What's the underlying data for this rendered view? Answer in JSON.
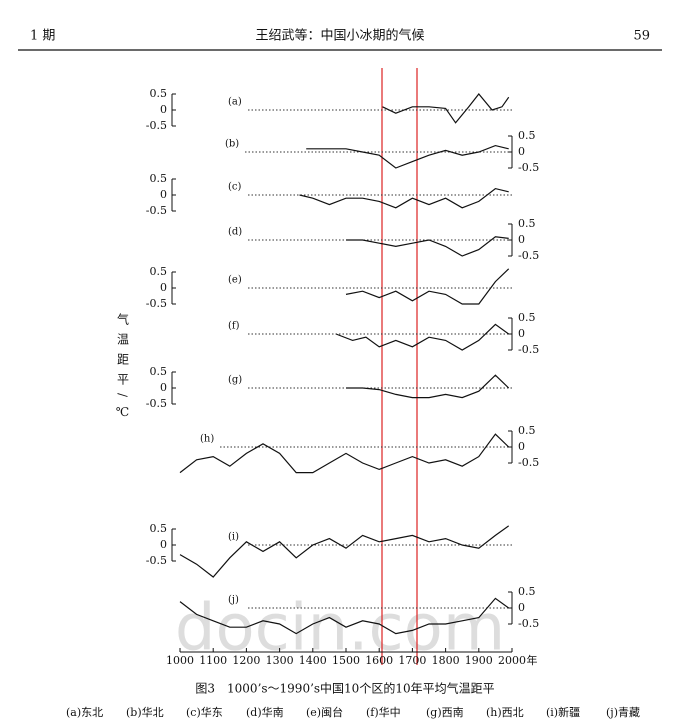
{
  "header": {
    "left": "1 期",
    "center": "王绍武等：中国小冰期的气候",
    "right": "59"
  },
  "figure": {
    "ylabel": "气温距平/℃",
    "caption": "图3　1000’s～1990’s中国10个区的10年平均气温距平",
    "legend": [
      "(a)东北",
      "(b)华北",
      "(c)华东",
      "(d)华南",
      "(e)闽台",
      "(f)华中",
      "(g)西南",
      "(h)西北",
      "(i)新疆",
      "(j)青藏"
    ],
    "watermark": "docin.com"
  },
  "chart_data": [
    {
      "type": "line",
      "label": "(a)",
      "axis": "left",
      "xlim": [
        1000,
        2000
      ],
      "ylim": [
        -0.5,
        0.5
      ],
      "yticks": [
        0.5,
        0,
        -0.5
      ],
      "x": [
        1610,
        1650,
        1700,
        1750,
        1800,
        1830,
        1870,
        1900,
        1940,
        1970,
        1990
      ],
      "values": [
        0.1,
        -0.1,
        0.1,
        0.1,
        0.05,
        -0.4,
        0.1,
        0.5,
        0,
        0.1,
        0.4
      ]
    },
    {
      "type": "line",
      "label": "(b)",
      "axis": "right",
      "xlim": [
        1000,
        2000
      ],
      "ylim": [
        -0.5,
        0.5
      ],
      "yticks": [
        0.5,
        0,
        -0.5
      ],
      "x": [
        1380,
        1450,
        1500,
        1550,
        1600,
        1650,
        1700,
        1750,
        1800,
        1850,
        1900,
        1950,
        1990
      ],
      "values": [
        0.1,
        0.1,
        0.1,
        0,
        -0.1,
        -0.5,
        -0.3,
        -0.1,
        0.05,
        -0.1,
        0,
        0.2,
        0.1
      ]
    },
    {
      "type": "line",
      "label": "(c)",
      "axis": "left",
      "xlim": [
        1000,
        2000
      ],
      "ylim": [
        -0.5,
        0.5
      ],
      "yticks": [
        0.5,
        0,
        -0.5
      ],
      "x": [
        1360,
        1400,
        1450,
        1500,
        1550,
        1600,
        1650,
        1700,
        1750,
        1800,
        1850,
        1900,
        1950,
        1990
      ],
      "values": [
        0,
        -0.1,
        -0.3,
        -0.1,
        -0.1,
        -0.2,
        -0.4,
        -0.1,
        -0.3,
        -0.1,
        -0.4,
        -0.2,
        0.2,
        0.1
      ]
    },
    {
      "type": "line",
      "label": "(d)",
      "axis": "right",
      "xlim": [
        1000,
        2000
      ],
      "ylim": [
        -0.5,
        0.5
      ],
      "yticks": [
        0.5,
        0,
        -0.5
      ],
      "x": [
        1500,
        1550,
        1600,
        1650,
        1700,
        1750,
        1800,
        1850,
        1900,
        1950,
        1990
      ],
      "values": [
        0,
        0,
        -0.1,
        -0.2,
        -0.1,
        0,
        -0.2,
        -0.5,
        -0.3,
        0.1,
        0.05
      ]
    },
    {
      "type": "line",
      "label": "(e)",
      "axis": "left",
      "xlim": [
        1000,
        2000
      ],
      "ylim": [
        -0.5,
        0.5
      ],
      "yticks": [
        0.5,
        0,
        -0.5
      ],
      "x": [
        1500,
        1550,
        1600,
        1650,
        1700,
        1750,
        1800,
        1850,
        1900,
        1950,
        1990
      ],
      "values": [
        -0.2,
        -0.1,
        -0.3,
        -0.1,
        -0.4,
        -0.1,
        -0.2,
        -0.5,
        -0.5,
        0.2,
        0.6
      ]
    },
    {
      "type": "line",
      "label": "(f)",
      "axis": "right",
      "xlim": [
        1000,
        2000
      ],
      "ylim": [
        -0.5,
        0.5
      ],
      "yticks": [
        0.5,
        0,
        -0.5
      ],
      "x": [
        1470,
        1520,
        1560,
        1600,
        1650,
        1700,
        1750,
        1800,
        1850,
        1900,
        1950,
        1990
      ],
      "values": [
        0,
        -0.2,
        -0.1,
        -0.4,
        -0.2,
        -0.4,
        -0.1,
        -0.2,
        -0.5,
        -0.2,
        0.3,
        0
      ]
    },
    {
      "type": "line",
      "label": "(g)",
      "axis": "left",
      "xlim": [
        1000,
        2000
      ],
      "ylim": [
        -0.5,
        0.5
      ],
      "yticks": [
        0.5,
        0,
        -0.5
      ],
      "x": [
        1500,
        1550,
        1600,
        1650,
        1700,
        1750,
        1800,
        1850,
        1900,
        1950,
        1990
      ],
      "values": [
        0,
        0,
        -0.05,
        -0.2,
        -0.3,
        -0.3,
        -0.2,
        -0.3,
        -0.1,
        0.4,
        0
      ]
    },
    {
      "type": "line",
      "label": "(h)",
      "axis": "right",
      "xlim": [
        1000,
        2000
      ],
      "ylim": [
        -0.5,
        0.5
      ],
      "yticks": [
        0.5,
        0,
        -0.5
      ],
      "x": [
        1000,
        1050,
        1100,
        1150,
        1200,
        1250,
        1300,
        1350,
        1400,
        1450,
        1500,
        1550,
        1600,
        1650,
        1700,
        1750,
        1800,
        1850,
        1900,
        1950,
        1990
      ],
      "values": [
        -0.8,
        -0.4,
        -0.3,
        -0.6,
        -0.2,
        0.1,
        -0.2,
        -0.8,
        -0.8,
        -0.5,
        -0.2,
        -0.5,
        -0.7,
        -0.5,
        -0.3,
        -0.5,
        -0.4,
        -0.6,
        -0.3,
        0.4,
        0
      ]
    },
    {
      "type": "line",
      "label": "(i)",
      "axis": "left",
      "xlim": [
        1000,
        2000
      ],
      "ylim": [
        -0.5,
        0.5
      ],
      "yticks": [
        0.5,
        0,
        -0.5
      ],
      "x": [
        1000,
        1050,
        1100,
        1150,
        1200,
        1250,
        1300,
        1350,
        1400,
        1450,
        1500,
        1550,
        1600,
        1650,
        1700,
        1750,
        1800,
        1850,
        1900,
        1950,
        1990
      ],
      "values": [
        -0.3,
        -0.6,
        -1,
        -0.4,
        0.1,
        -0.2,
        0.1,
        -0.4,
        0,
        0.2,
        -0.1,
        0.3,
        0.1,
        0.2,
        0.3,
        0.1,
        0.2,
        0,
        -0.1,
        0.3,
        0.6
      ]
    },
    {
      "type": "line",
      "label": "(j)",
      "axis": "right",
      "xlim": [
        1000,
        2000
      ],
      "ylim": [
        -0.5,
        0.5
      ],
      "yticks": [
        0.5,
        0,
        -0.5
      ],
      "xticks": [
        1000,
        1100,
        1200,
        1300,
        1400,
        1500,
        1600,
        1700,
        1800,
        1900,
        2000
      ],
      "xlabel": "年",
      "x": [
        1000,
        1050,
        1100,
        1150,
        1200,
        1250,
        1300,
        1350,
        1400,
        1450,
        1500,
        1550,
        1600,
        1650,
        1700,
        1750,
        1800,
        1850,
        1900,
        1950,
        1990
      ],
      "values": [
        0.2,
        -0.2,
        -0.4,
        -0.6,
        -0.6,
        -0.4,
        -0.5,
        -0.8,
        -0.5,
        -0.3,
        -0.6,
        -0.4,
        -0.5,
        -0.8,
        -0.7,
        -0.5,
        -0.5,
        -0.4,
        -0.3,
        0.3,
        0
      ]
    }
  ]
}
